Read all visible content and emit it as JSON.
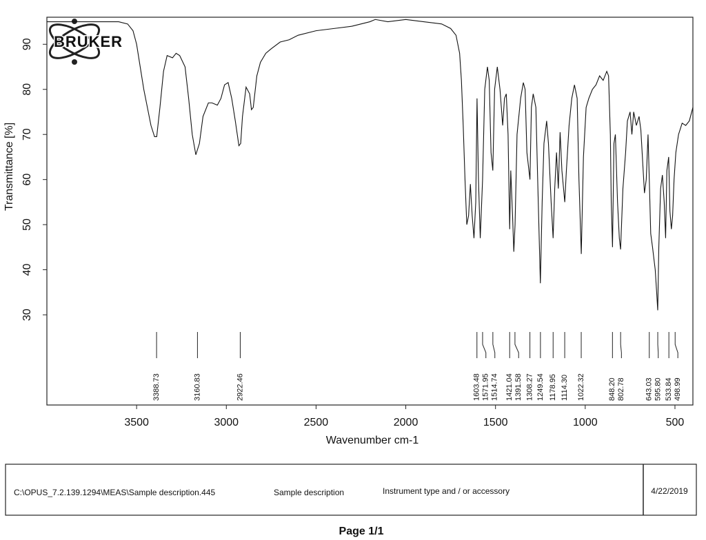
{
  "chart_data": {
    "type": "line",
    "logo": "BRUKER",
    "xlabel": "Wavenumber cm-1",
    "ylabel": "Transmittance [%]",
    "xlim": [
      4000,
      400
    ],
    "ylim": [
      10,
      96
    ],
    "xticks": [
      3500,
      3000,
      2500,
      2000,
      1500,
      1000,
      500
    ],
    "yticks": [
      30,
      40,
      50,
      60,
      70,
      80,
      90
    ],
    "grid": false,
    "x": [
      4000,
      3600,
      3550,
      3520,
      3500,
      3480,
      3460,
      3440,
      3420,
      3400,
      3388,
      3370,
      3350,
      3330,
      3300,
      3280,
      3260,
      3230,
      3210,
      3190,
      3170,
      3150,
      3130,
      3100,
      3080,
      3050,
      3030,
      3010,
      2990,
      2970,
      2950,
      2930,
      2920,
      2910,
      2890,
      2870,
      2860,
      2850,
      2830,
      2810,
      2780,
      2750,
      2700,
      2650,
      2600,
      2500,
      2400,
      2300,
      2200,
      2170,
      2100,
      2000,
      1900,
      1800,
      1750,
      1720,
      1700,
      1690,
      1680,
      1670,
      1660,
      1650,
      1640,
      1630,
      1620,
      1610,
      1603,
      1595,
      1585,
      1572,
      1560,
      1545,
      1535,
      1525,
      1515,
      1505,
      1490,
      1475,
      1460,
      1450,
      1440,
      1430,
      1421,
      1415,
      1405,
      1398,
      1391,
      1380,
      1360,
      1345,
      1335,
      1325,
      1308,
      1300,
      1290,
      1275,
      1265,
      1250,
      1240,
      1230,
      1215,
      1205,
      1190,
      1179,
      1170,
      1160,
      1150,
      1140,
      1130,
      1114,
      1105,
      1090,
      1075,
      1060,
      1045,
      1035,
      1022,
      1010,
      995,
      980,
      960,
      940,
      920,
      900,
      880,
      870,
      860,
      855,
      848,
      840,
      832,
      820,
      810,
      803,
      790,
      775,
      765,
      750,
      740,
      730,
      715,
      700,
      690,
      680,
      670,
      660,
      650,
      643,
      635,
      625,
      610,
      602,
      596,
      590,
      580,
      570,
      560,
      552,
      545,
      535,
      528,
      520,
      513,
      505,
      495,
      480,
      460,
      440,
      420,
      400
    ],
    "series": [
      {
        "color": "#111111",
        "values": [
          95,
          95,
          94.5,
          93,
          90,
          85,
          80,
          76,
          72,
          69.5,
          69.5,
          76,
          84,
          87.5,
          87,
          88,
          87.5,
          85,
          78,
          70,
          65.5,
          68,
          74,
          77,
          77,
          76.5,
          78,
          81,
          81.5,
          78,
          73,
          67.5,
          68,
          74,
          80.5,
          79,
          75.5,
          76,
          83,
          86,
          88,
          89,
          90.5,
          91,
          92,
          93,
          93.5,
          94,
          95,
          95.5,
          95,
          95.5,
          95,
          94.5,
          93.5,
          92,
          88,
          82,
          72,
          60,
          50,
          52,
          59,
          52,
          47,
          55,
          78,
          60,
          47,
          60,
          80,
          85,
          82,
          66,
          62,
          80,
          85,
          80,
          72,
          78,
          79,
          70,
          49,
          62,
          52,
          44,
          50,
          70,
          78,
          81.5,
          80,
          66,
          60,
          76,
          79,
          76,
          60,
          37,
          55,
          68,
          73,
          68,
          55,
          47,
          58,
          66,
          58,
          70.5,
          62,
          55,
          62,
          72,
          78,
          81,
          78,
          60,
          43.5,
          65,
          76,
          78,
          80,
          81,
          83,
          82,
          84,
          83,
          70,
          55,
          45,
          68,
          70,
          55,
          47,
          44.5,
          58,
          66,
          73,
          75,
          70,
          75,
          72,
          74,
          71,
          64,
          57,
          60,
          70,
          60,
          48,
          45,
          40,
          35,
          31,
          45,
          58,
          61,
          55,
          47,
          62,
          65,
          53,
          49,
          52,
          60,
          66,
          70,
          72.5,
          72,
          73,
          76
        ]
      }
    ],
    "peaks": [
      3388.73,
      3160.83,
      2922.46,
      1603.48,
      1571.95,
      1514.74,
      1421.04,
      1391.58,
      1308.27,
      1249.54,
      1178.95,
      {
        "value": 1114.3,
        "label": "1114.30"
      },
      1022.32,
      {
        "value": 848.2,
        "label": "848.20"
      },
      802.78,
      643.03,
      {
        "value": 595.8,
        "label": "595.80"
      },
      533.84,
      498.99
    ]
  },
  "footer": {
    "path": "C:\\OPUS_7.2.139.1294\\MEAS\\Sample description.445",
    "sample": "Sample description",
    "instrument": "Instrument type and / or accessory",
    "date": "4/22/2019",
    "page": "Page 1/1"
  }
}
